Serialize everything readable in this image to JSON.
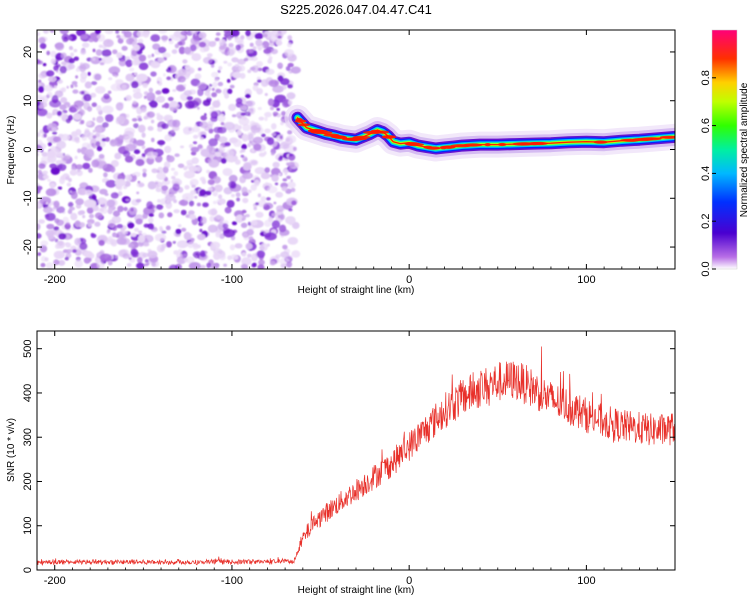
{
  "title": "S225.2026.047.04.47.C41",
  "chart_data": [
    {
      "type": "heatmap",
      "xlabel": "Height of straight line (km)",
      "ylabel": "Frequency (Hz)",
      "xlim": [
        -210,
        150
      ],
      "ylim": [
        -24.5,
        24.5
      ],
      "xticks": [
        -200,
        -100,
        0,
        100
      ],
      "yticks": [
        -20,
        -10,
        0,
        10,
        20
      ],
      "noise_region_x": [
        -210,
        -65
      ],
      "ridge": {
        "x": [
          -63,
          -58,
          -52,
          -47,
          -42,
          -38,
          -34,
          -30,
          -26,
          -22,
          -18,
          -15,
          -12,
          -9,
          -5,
          0,
          5,
          10,
          15,
          20,
          25,
          30,
          40,
          50,
          60,
          70,
          80,
          90,
          100,
          110,
          120,
          130,
          140,
          150
        ],
        "y": [
          6.5,
          4.5,
          3.8,
          3.2,
          2.8,
          2.4,
          2.2,
          2.0,
          2.6,
          3.2,
          4.0,
          3.6,
          2.8,
          1.6,
          1.2,
          1.4,
          0.8,
          0.5,
          0.2,
          0.4,
          0.6,
          0.8,
          1.0,
          1.0,
          1.1,
          1.2,
          1.3,
          1.5,
          1.6,
          1.5,
          1.8,
          2.0,
          2.3,
          2.6
        ]
      },
      "colorbar": {
        "label": "Normalized spectral amplitude",
        "range": [
          0.0,
          1.0
        ],
        "ticks": [
          0.0,
          0.2,
          0.4,
          0.6,
          0.8
        ],
        "tick_labels": [
          "0.0",
          "0.2",
          "0.4",
          "0.6",
          "0.8"
        ]
      }
    },
    {
      "type": "line",
      "xlabel": "Height of straight line (km)",
      "ylabel": "SNR (10 * v/v)",
      "xlim": [
        -210,
        150
      ],
      "ylim": [
        0,
        540
      ],
      "xticks": [
        -200,
        -100,
        0,
        100
      ],
      "yticks": [
        0,
        100,
        200,
        300,
        400,
        500
      ],
      "series": [
        {
          "name": "SNR",
          "color": "#e8302a",
          "x": [
            -210,
            -150,
            -100,
            -65,
            -60,
            -55,
            -50,
            -40,
            -30,
            -20,
            -10,
            0,
            10,
            20,
            30,
            40,
            50,
            60,
            70,
            80,
            90,
            100,
            110,
            120,
            130,
            140,
            150
          ],
          "values": [
            18,
            18,
            18,
            20,
            70,
            100,
            120,
            150,
            180,
            210,
            240,
            280,
            320,
            360,
            390,
            410,
            425,
            430,
            410,
            385,
            370,
            350,
            335,
            325,
            320,
            315,
            320
          ]
        }
      ]
    }
  ]
}
